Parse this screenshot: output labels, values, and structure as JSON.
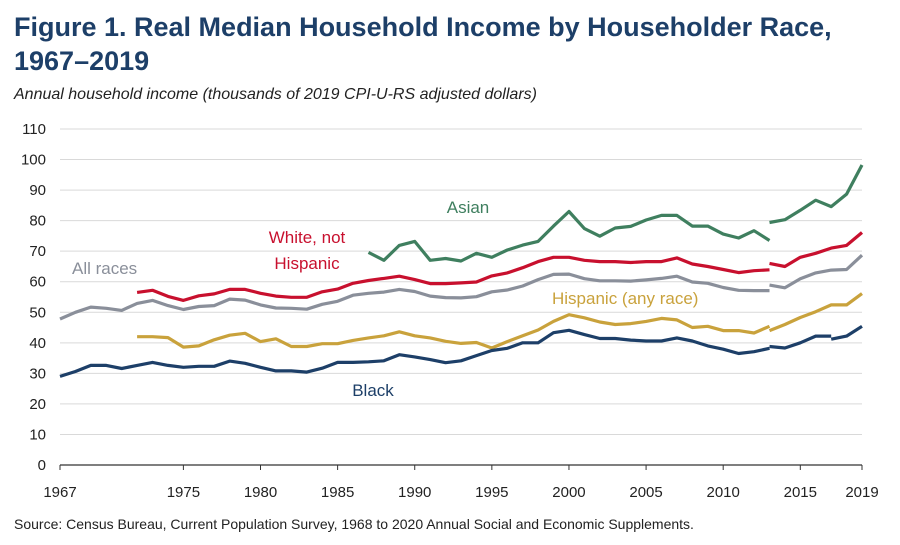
{
  "header": {
    "title": "Figure 1. Real Median Household Income by Householder Race, 1967–2019",
    "subtitle": "Annual household income (thousands of 2019 CPI-U-RS adjusted dollars)"
  },
  "footer": {
    "source": "Source: Census Bureau, Current Population Survey, 1968 to 2020 Annual Social and Economic Supplements."
  },
  "chart_data": {
    "type": "line",
    "title": "Figure 1. Real Median Household Income by Householder Race, 1967–2019",
    "subtitle": "Annual household income (thousands of 2019 CPI-U-RS adjusted dollars)",
    "xlabel": "",
    "ylabel": "",
    "xlim": [
      1967,
      2019
    ],
    "ylim": [
      0,
      110
    ],
    "x_ticks": [
      1967,
      1975,
      1980,
      1985,
      1990,
      1995,
      2000,
      2005,
      2010,
      2015,
      2019
    ],
    "y_ticks": [
      0,
      10,
      20,
      30,
      40,
      50,
      60,
      70,
      80,
      90,
      100,
      110
    ],
    "grid": "horizontal",
    "legend": "none (direct labels on lines)",
    "series": [
      {
        "name": "All races",
        "color": "#8a8f9a",
        "segments": [
          [
            [
              1967,
              47.8
            ],
            [
              1968,
              50.0
            ],
            [
              1969,
              51.7
            ],
            [
              1970,
              51.3
            ],
            [
              1971,
              50.6
            ],
            [
              1972,
              52.9
            ],
            [
              1973,
              53.9
            ],
            [
              1974,
              52.2
            ],
            [
              1975,
              50.9
            ],
            [
              1976,
              51.9
            ],
            [
              1977,
              52.2
            ],
            [
              1978,
              54.3
            ],
            [
              1979,
              54.0
            ],
            [
              1980,
              52.4
            ],
            [
              1981,
              51.4
            ],
            [
              1982,
              51.3
            ],
            [
              1983,
              51.0
            ],
            [
              1984,
              52.6
            ],
            [
              1985,
              53.6
            ],
            [
              1986,
              55.6
            ],
            [
              1987,
              56.2
            ],
            [
              1988,
              56.6
            ],
            [
              1989,
              57.5
            ],
            [
              1990,
              56.8
            ],
            [
              1991,
              55.3
            ],
            [
              1992,
              54.8
            ],
            [
              1993,
              54.7
            ],
            [
              1994,
              55.1
            ],
            [
              1995,
              56.7
            ],
            [
              1996,
              57.3
            ],
            [
              1997,
              58.6
            ],
            [
              1998,
              60.7
            ],
            [
              1999,
              62.4
            ],
            [
              2000,
              62.5
            ],
            [
              2001,
              61.0
            ],
            [
              2002,
              60.3
            ],
            [
              2003,
              60.3
            ],
            [
              2004,
              60.2
            ],
            [
              2005,
              60.6
            ],
            [
              2006,
              61.1
            ],
            [
              2007,
              61.8
            ],
            [
              2008,
              59.9
            ],
            [
              2009,
              59.5
            ],
            [
              2010,
              58.1
            ],
            [
              2011,
              57.2
            ],
            [
              2012,
              57.1
            ],
            [
              2013,
              57.1
            ]
          ],
          [
            [
              2013,
              58.9
            ],
            [
              2014,
              58.0
            ],
            [
              2015,
              61.0
            ],
            [
              2016,
              62.9
            ],
            [
              2017,
              63.8
            ],
            [
              2018,
              64.0
            ],
            [
              2019,
              68.7
            ]
          ]
        ]
      },
      {
        "name": "White, not Hispanic",
        "label_lines": [
          "White, not",
          "Hispanic"
        ],
        "color": "#c8102e",
        "segments": [
          [
            [
              1972,
              56.5
            ],
            [
              1973,
              57.2
            ],
            [
              1974,
              55.2
            ],
            [
              1975,
              53.9
            ],
            [
              1976,
              55.4
            ],
            [
              1977,
              56.0
            ],
            [
              1978,
              57.5
            ],
            [
              1979,
              57.5
            ],
            [
              1980,
              56.2
            ],
            [
              1981,
              55.3
            ],
            [
              1982,
              54.9
            ],
            [
              1983,
              54.9
            ],
            [
              1984,
              56.7
            ],
            [
              1985,
              57.6
            ],
            [
              1986,
              59.5
            ],
            [
              1987,
              60.4
            ],
            [
              1988,
              61.1
            ],
            [
              1989,
              61.8
            ],
            [
              1990,
              60.7
            ],
            [
              1991,
              59.4
            ],
            [
              1992,
              59.4
            ],
            [
              1993,
              59.6
            ],
            [
              1994,
              59.9
            ],
            [
              1995,
              61.9
            ],
            [
              1996,
              62.9
            ],
            [
              1997,
              64.6
            ],
            [
              1998,
              66.6
            ],
            [
              1999,
              68.0
            ],
            [
              2000,
              68.0
            ],
            [
              2001,
              67.0
            ],
            [
              2002,
              66.6
            ],
            [
              2003,
              66.6
            ],
            [
              2004,
              66.3
            ],
            [
              2005,
              66.6
            ],
            [
              2006,
              66.6
            ],
            [
              2007,
              67.8
            ],
            [
              2008,
              65.8
            ],
            [
              2009,
              65.0
            ],
            [
              2010,
              64.0
            ],
            [
              2011,
              63.0
            ],
            [
              2012,
              63.6
            ],
            [
              2013,
              63.9
            ]
          ],
          [
            [
              2013,
              66.0
            ],
            [
              2014,
              65.0
            ],
            [
              2015,
              68.0
            ],
            [
              2016,
              69.3
            ],
            [
              2017,
              71.0
            ],
            [
              2018,
              71.9
            ],
            [
              2019,
              76.1
            ]
          ]
        ]
      },
      {
        "name": "Asian",
        "color": "#3f7f5f",
        "segments": [
          [
            [
              1987,
              69.6
            ],
            [
              1988,
              67.0
            ],
            [
              1989,
              71.9
            ],
            [
              1990,
              73.2
            ],
            [
              1991,
              67.0
            ],
            [
              1992,
              67.6
            ],
            [
              1993,
              66.8
            ],
            [
              1994,
              69.3
            ],
            [
              1995,
              68.0
            ],
            [
              1996,
              70.4
            ],
            [
              1997,
              72.0
            ],
            [
              1998,
              73.2
            ],
            [
              1999,
              78.2
            ],
            [
              2000,
              83.0
            ],
            [
              2001,
              77.4
            ],
            [
              2002,
              74.9
            ],
            [
              2003,
              77.6
            ],
            [
              2004,
              78.1
            ],
            [
              2005,
              80.2
            ],
            [
              2006,
              81.7
            ],
            [
              2007,
              81.7
            ],
            [
              2008,
              78.2
            ],
            [
              2009,
              78.2
            ],
            [
              2010,
              75.6
            ],
            [
              2011,
              74.3
            ],
            [
              2012,
              76.7
            ],
            [
              2013,
              73.5
            ]
          ],
          [
            [
              2013,
              79.4
            ],
            [
              2014,
              80.3
            ],
            [
              2015,
              83.4
            ],
            [
              2016,
              86.7
            ],
            [
              2017,
              84.6
            ],
            [
              2018,
              88.7
            ],
            [
              2019,
              98.2
            ]
          ]
        ]
      },
      {
        "name": "Hispanic (any race)",
        "color": "#c9a23c",
        "segments": [
          [
            [
              1972,
              42.0
            ],
            [
              1973,
              42.0
            ],
            [
              1974,
              41.7
            ],
            [
              1975,
              38.6
            ],
            [
              1976,
              39.0
            ],
            [
              1977,
              41.0
            ],
            [
              1978,
              42.5
            ],
            [
              1979,
              43.1
            ],
            [
              1980,
              40.4
            ],
            [
              1981,
              41.3
            ],
            [
              1982,
              38.8
            ],
            [
              1983,
              38.8
            ],
            [
              1984,
              39.7
            ],
            [
              1985,
              39.7
            ],
            [
              1986,
              40.8
            ],
            [
              1987,
              41.6
            ],
            [
              1988,
              42.3
            ],
            [
              1989,
              43.6
            ],
            [
              1990,
              42.3
            ],
            [
              1991,
              41.6
            ],
            [
              1992,
              40.5
            ],
            [
              1993,
              39.8
            ],
            [
              1994,
              40.1
            ],
            [
              1995,
              38.3
            ],
            [
              1996,
              40.4
            ],
            [
              1997,
              42.3
            ],
            [
              1998,
              44.2
            ],
            [
              1999,
              47.0
            ],
            [
              2000,
              49.2
            ],
            [
              2001,
              48.2
            ],
            [
              2002,
              46.8
            ],
            [
              2003,
              46.0
            ],
            [
              2004,
              46.3
            ],
            [
              2005,
              47.0
            ],
            [
              2006,
              48.0
            ],
            [
              2007,
              47.5
            ],
            [
              2008,
              45.0
            ],
            [
              2009,
              45.4
            ],
            [
              2010,
              44.0
            ],
            [
              2011,
              44.0
            ],
            [
              2012,
              43.2
            ],
            [
              2013,
              45.4
            ]
          ],
          [
            [
              2013,
              44.0
            ],
            [
              2014,
              46.0
            ],
            [
              2015,
              48.3
            ],
            [
              2016,
              50.2
            ],
            [
              2017,
              52.4
            ],
            [
              2018,
              52.4
            ],
            [
              2019,
              56.1
            ]
          ]
        ]
      },
      {
        "name": "Black",
        "color": "#1d3f68",
        "segments": [
          [
            [
              1967,
              29.0
            ],
            [
              1968,
              30.6
            ],
            [
              1969,
              32.6
            ],
            [
              1970,
              32.6
            ],
            [
              1971,
              31.6
            ],
            [
              1972,
              32.6
            ],
            [
              1973,
              33.6
            ],
            [
              1974,
              32.6
            ],
            [
              1975,
              32.0
            ],
            [
              1976,
              32.3
            ],
            [
              1977,
              32.3
            ],
            [
              1978,
              34.0
            ],
            [
              1979,
              33.3
            ],
            [
              1980,
              32.0
            ],
            [
              1981,
              30.8
            ],
            [
              1982,
              30.8
            ],
            [
              1983,
              30.4
            ],
            [
              1984,
              31.7
            ],
            [
              1985,
              33.6
            ],
            [
              1986,
              33.6
            ],
            [
              1987,
              33.8
            ],
            [
              1988,
              34.1
            ],
            [
              1989,
              36.1
            ],
            [
              1990,
              35.4
            ],
            [
              1991,
              34.5
            ],
            [
              1992,
              33.5
            ],
            [
              1993,
              34.1
            ],
            [
              1994,
              35.8
            ],
            [
              1995,
              37.5
            ],
            [
              1996,
              38.2
            ],
            [
              1997,
              40.0
            ],
            [
              1998,
              40.0
            ],
            [
              1999,
              43.3
            ],
            [
              2000,
              44.1
            ],
            [
              2001,
              42.7
            ],
            [
              2002,
              41.4
            ],
            [
              2003,
              41.4
            ],
            [
              2004,
              40.9
            ],
            [
              2005,
              40.6
            ],
            [
              2006,
              40.6
            ],
            [
              2007,
              41.6
            ],
            [
              2008,
              40.6
            ],
            [
              2009,
              39.0
            ],
            [
              2010,
              37.9
            ],
            [
              2011,
              36.5
            ],
            [
              2012,
              37.1
            ],
            [
              2013,
              38.2
            ]
          ],
          [
            [
              2013,
              38.8
            ],
            [
              2014,
              38.3
            ],
            [
              2015,
              40.0
            ],
            [
              2016,
              42.2
            ],
            [
              2017,
              42.2
            ]
          ],
          [
            [
              2017,
              41.2
            ],
            [
              2018,
              42.2
            ],
            [
              2019,
              45.4
            ]
          ]
        ]
      }
    ]
  }
}
